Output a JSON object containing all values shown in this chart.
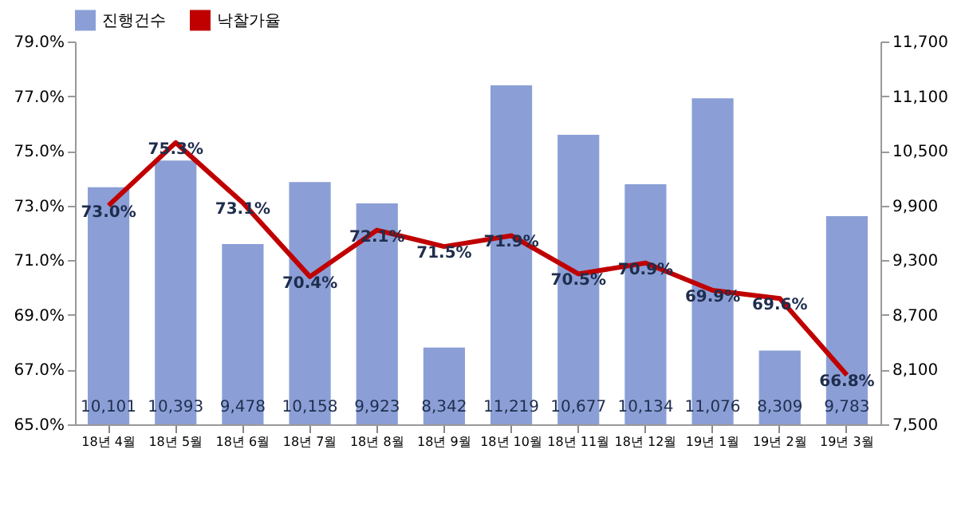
{
  "chart_data": {
    "type": "bar",
    "categories": [
      "18년 4월",
      "18년 5월",
      "18년 6월",
      "18년 7월",
      "18년 8월",
      "18년 9월",
      "18년 10월",
      "18년 11월",
      "18년 12월",
      "19년 1월",
      "19년 2월",
      "19년 3월"
    ],
    "series": [
      {
        "name": "진행건수",
        "axis": "y2",
        "color": "#8b9fd6",
        "values": [
          10101,
          10393,
          9478,
          10158,
          9923,
          8342,
          11219,
          10677,
          10134,
          11076,
          8309,
          9783
        ],
        "value_labels": [
          "10,101",
          "10,393",
          "9,478",
          "10,158",
          "9,923",
          "8,342",
          "11,219",
          "10,677",
          "10,134",
          "11,076",
          "8,309",
          "9,783"
        ]
      },
      {
        "name": "낙찰가율",
        "type": "line",
        "color": "#c00000",
        "values": [
          73.0,
          75.3,
          73.1,
          70.4,
          72.1,
          71.5,
          71.9,
          70.5,
          70.9,
          69.9,
          69.6,
          66.8
        ],
        "value_labels": [
          "73.0%",
          "75.3%",
          "73.1%",
          "70.4%",
          "72.1%",
          "71.5%",
          "71.9%",
          "70.5%",
          "70.9%",
          "69.9%",
          "69.6%",
          "66.8%"
        ]
      }
    ],
    "ylim": [
      65,
      79
    ],
    "yticks": [
      {
        "value": 65,
        "label": "65.0%"
      },
      {
        "value": 67,
        "label": "67.0%"
      },
      {
        "value": 69,
        "label": "69.0%"
      },
      {
        "value": 71,
        "label": "71.0%"
      },
      {
        "value": 73,
        "label": "73.0%"
      },
      {
        "value": 75,
        "label": "75.0%"
      },
      {
        "value": 77,
        "label": "77.0%"
      },
      {
        "value": 79,
        "label": "79.0%"
      }
    ],
    "y2lim": [
      7500,
      11700
    ],
    "y2ticks": [
      {
        "value": 7500,
        "label": "7,500"
      },
      {
        "value": 8100,
        "label": "8,100"
      },
      {
        "value": 8700,
        "label": "8,700"
      },
      {
        "value": 9300,
        "label": "9,300"
      },
      {
        "value": 9900,
        "label": "9,900"
      },
      {
        "value": 10500,
        "label": "10,500"
      },
      {
        "value": 11100,
        "label": "11,100"
      },
      {
        "value": 11700,
        "label": "11,700"
      }
    ],
    "grid": false,
    "legend": "top left",
    "marker": "none",
    "line_style": "solid"
  }
}
